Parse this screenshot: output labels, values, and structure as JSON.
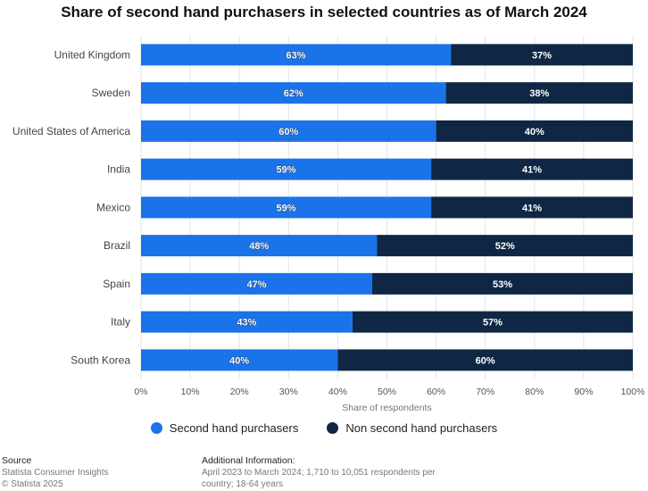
{
  "title": "Share of second hand purchasers in selected countries as of March 2024",
  "colors": {
    "series1": "#1a73e8",
    "series2": "#0f2744",
    "grid": "#e3e3e3",
    "text": "#444444"
  },
  "chart_data": {
    "type": "bar",
    "orientation": "horizontal",
    "stacked": true,
    "title": "Share of second hand purchasers in selected countries as of March 2024",
    "categories": [
      "United Kingdom",
      "Sweden",
      "United States of America",
      "India",
      "Mexico",
      "Brazil",
      "Spain",
      "Italy",
      "South Korea"
    ],
    "series": [
      {
        "name": "Second hand purchasers",
        "values": [
          63,
          62,
          60,
          59,
          59,
          48,
          47,
          43,
          40
        ]
      },
      {
        "name": "Non second hand purchasers",
        "values": [
          37,
          38,
          40,
          41,
          41,
          52,
          53,
          57,
          60
        ]
      }
    ],
    "xlabel": "Share of respondents",
    "ylabel": "",
    "xlim": [
      0,
      100
    ],
    "ticks": [
      "0%",
      "10%",
      "20%",
      "30%",
      "40%",
      "50%",
      "60%",
      "70%",
      "80%",
      "90%",
      "100%"
    ],
    "value_suffix": "%",
    "grid": true,
    "legend_position": "bottom"
  },
  "legend": {
    "items": [
      "Second hand purchasers",
      "Non second hand purchasers"
    ]
  },
  "footer": {
    "source_heading": "Source",
    "source_line1": "Statista Consumer Insights",
    "source_line2": "© Statista 2025",
    "info_heading": "Additional Information:",
    "info_text": "April 2023 to March 2024; 1,710 to 10,051 respondents per country; 18-64 years"
  }
}
